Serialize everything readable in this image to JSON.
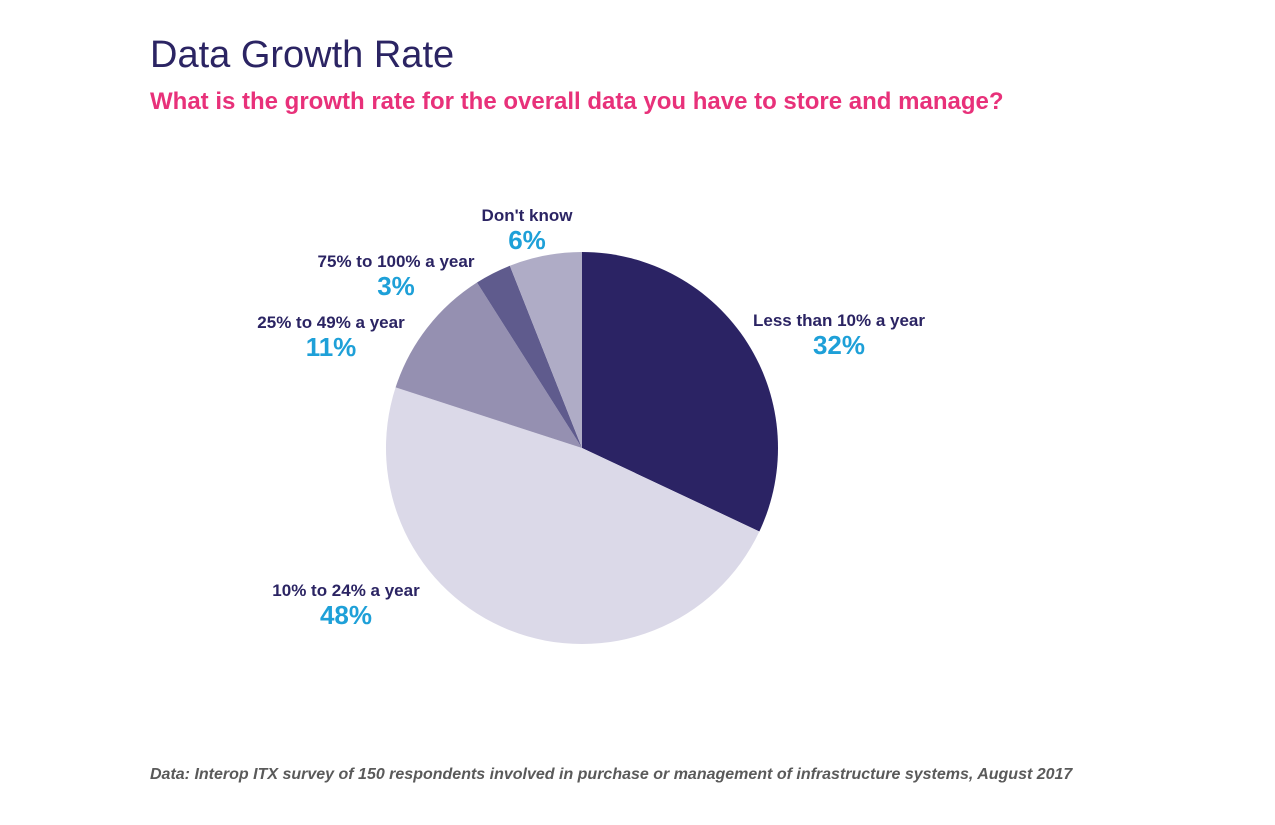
{
  "chart_data": {
    "type": "pie",
    "title": "Data Growth Rate",
    "subtitle": "What is the growth rate for the overall data you have to store and manage?",
    "slices": [
      {
        "label": "Less than 10% a year",
        "value": 32,
        "display": "32%",
        "color": "#2b2364"
      },
      {
        "label": "10% to 24% a year",
        "value": 48,
        "display": "48%",
        "color": "#dbd9e8"
      },
      {
        "label": "25% to 49% a year",
        "value": 11,
        "display": "11%",
        "color": "#9590b1"
      },
      {
        "label": "75% to 100% a year",
        "value": 3,
        "display": "3%",
        "color": "#5f5b8d"
      },
      {
        "label": "Don't know",
        "value": 6,
        "display": "6%",
        "color": "#afacc6"
      }
    ],
    "legend": "none",
    "start": "12 o'clock",
    "direction": "clockwise"
  },
  "footnote": "Data: Interop ITX survey of 150 respondents involved in purchase or management of infrastructure systems, August 2017",
  "colors": {
    "title": "#2b2463",
    "subtitle": "#e8317a",
    "value_label": "#1ea0d8",
    "category_label": "#2b2463",
    "footnote": "#5a5a5a"
  }
}
